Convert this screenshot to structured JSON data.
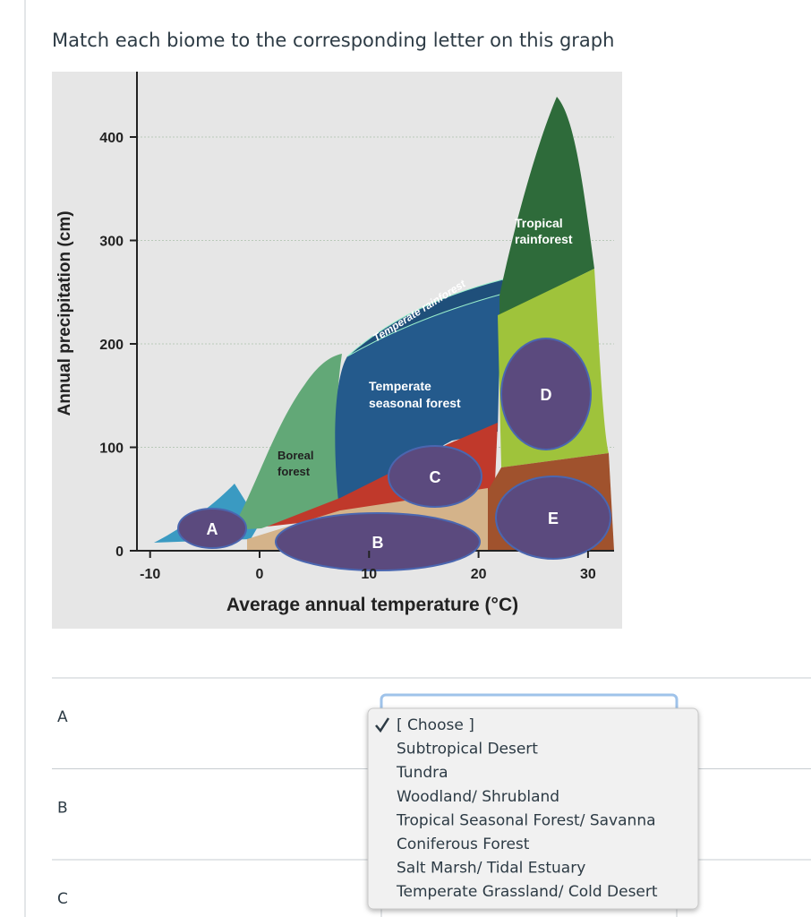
{
  "question": "Match each biome to the corresponding letter on this graph",
  "figure": {
    "y_label": "Annual precipitation (cm)",
    "x_label": "Average annual temperature (°C)",
    "yticks": [
      0,
      100,
      200,
      300,
      400
    ],
    "xticks": [
      -10,
      0,
      10,
      20,
      30
    ],
    "tropical_rainforest": [
      "Tropical",
      "rainforest"
    ],
    "temperate_rainforest": "Temperate rainforest",
    "temperate_seasonal_forest": [
      "Temperate",
      "seasonal forest"
    ],
    "boreal_forest": [
      "Boreal",
      "forest"
    ],
    "letters": [
      "A",
      "B",
      "C",
      "D",
      "E"
    ]
  },
  "rows": [
    "A",
    "B",
    "C"
  ],
  "dropdown": {
    "options": [
      "[ Choose ]",
      "Subtropical Desert",
      "Tundra",
      "Woodland/ Shrubland",
      "Tropical Seasonal Forest/ Savanna",
      "Coniferous Forest",
      "Salt Marsh/ Tidal Estuary",
      "Temperate Grassland/ Cold Desert"
    ]
  }
}
